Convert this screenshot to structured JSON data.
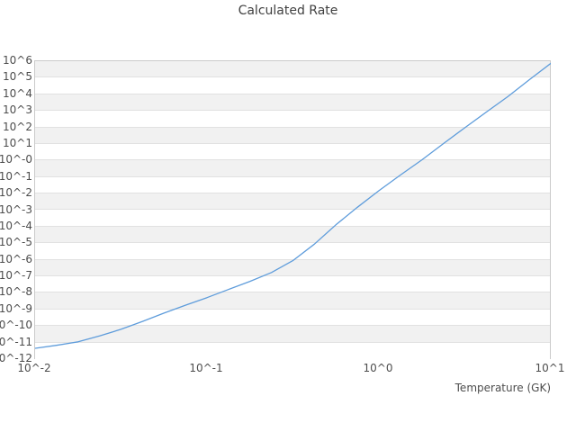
{
  "chart_data": {
    "type": "line",
    "title": "Calculated Rate",
    "xlabel": "Temperature (GK)",
    "ylabel": "",
    "x_scale": "log",
    "y_scale": "log",
    "xlim": [
      0.01,
      10
    ],
    "ylim": [
      1e-12,
      1000000
    ],
    "grid": "horizontal-decade-bands",
    "legend": "none",
    "x_ticks": [
      {
        "exp": -2,
        "label": "10^-2"
      },
      {
        "exp": -1,
        "label": "10^-1"
      },
      {
        "exp": 0,
        "label": "10^0"
      },
      {
        "exp": 1,
        "label": "10^1"
      }
    ],
    "y_ticks": [
      {
        "exp": 6,
        "label": "10^6"
      },
      {
        "exp": 5,
        "label": "10^5"
      },
      {
        "exp": 4,
        "label": "10^4"
      },
      {
        "exp": 3,
        "label": "10^3"
      },
      {
        "exp": 2,
        "label": "10^2"
      },
      {
        "exp": 1,
        "label": "10^1"
      },
      {
        "exp": 0,
        "label": "10^-0"
      },
      {
        "exp": -1,
        "label": "10^-1"
      },
      {
        "exp": -2,
        "label": "10^-2"
      },
      {
        "exp": -3,
        "label": "10^-3"
      },
      {
        "exp": -4,
        "label": "10^-4"
      },
      {
        "exp": -5,
        "label": "10^-5"
      },
      {
        "exp": -6,
        "label": "10^-6"
      },
      {
        "exp": -7,
        "label": "10^-7"
      },
      {
        "exp": -8,
        "label": "10^-8"
      },
      {
        "exp": -9,
        "label": "10^-9"
      },
      {
        "exp": -10,
        "label": "10^-10"
      },
      {
        "exp": -11,
        "label": "10^-11"
      },
      {
        "exp": -12,
        "label": "10^-12"
      }
    ],
    "style": {
      "line_color": "#5e9cdb",
      "band_fill": "#f1f1f1",
      "band_alt_fill": "#ffffff",
      "gridline_color": "#e1e1e1",
      "plot_border_color": "#cacaca",
      "text_color": "#4d4d4d",
      "title_color": "#404040",
      "background": "#ffffff"
    },
    "series": [
      {
        "name": "Calculated Rate",
        "x": [
          0.01,
          0.0133,
          0.0178,
          0.0237,
          0.0316,
          0.0422,
          0.0562,
          0.075,
          0.1,
          0.133,
          0.178,
          0.237,
          0.316,
          0.422,
          0.562,
          0.75,
          1.0,
          1.33,
          1.78,
          2.37,
          3.16,
          4.22,
          5.62,
          7.5,
          10.0
        ],
        "y": [
          4.5e-12,
          6.8e-12,
          1.1e-11,
          2.5e-11,
          6.3e-11,
          1.9e-10,
          6e-10,
          1.8e-09,
          5.2e-09,
          1.6e-08,
          5e-08,
          1.7e-07,
          8.9e-07,
          8.9e-06,
          0.00013,
          0.0015,
          0.015,
          0.13,
          1.1,
          10.5,
          95,
          850,
          7200,
          76000,
          740000
        ]
      }
    ]
  }
}
